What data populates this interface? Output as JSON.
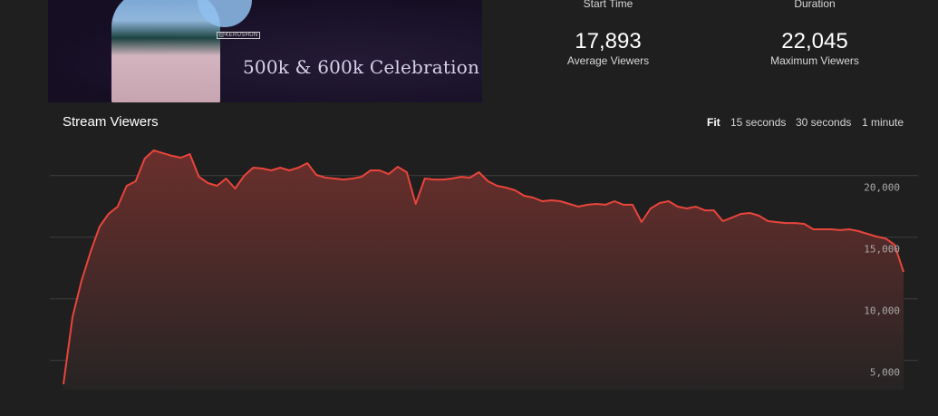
{
  "thumbnail": {
    "caption": "500k & 600k Celebration",
    "tag": "@KERUSHUN"
  },
  "stats": [
    {
      "label": "Start Time"
    },
    {
      "label": "Duration"
    },
    {
      "value": "17,893",
      "label": "Average Viewers"
    },
    {
      "value": "22,045",
      "label": "Maximum Viewers"
    }
  ],
  "chart_title": "Stream Viewers",
  "resolutions": [
    "Fit",
    "15 seconds",
    "30 seconds",
    "1 minute"
  ],
  "active_resolution": "Fit",
  "colors": {
    "line": "#e8453c",
    "fill_top": "#6b2f2c",
    "fill_bottom": "#262424",
    "background": "#1f1f1f"
  },
  "chart_data": {
    "type": "area",
    "title": "Stream Viewers",
    "xlabel": "",
    "ylabel": "",
    "ylim": [
      2700,
      22500
    ],
    "yticks": [
      5000,
      10000,
      15000,
      20000
    ],
    "ytick_labels": [
      "5,000",
      "10,000",
      "15,000",
      "20,000"
    ],
    "grid": true,
    "values": [
      3070,
      8510,
      11450,
      13800,
      15860,
      16890,
      17480,
      19170,
      19540,
      21380,
      22045,
      21820,
      21600,
      21450,
      21740,
      19900,
      19390,
      19170,
      19760,
      18950,
      19980,
      20640,
      20570,
      20420,
      20640,
      20420,
      20640,
      21010,
      20050,
      19830,
      19760,
      19680,
      19760,
      19900,
      20420,
      20420,
      20120,
      20710,
      20270,
      17700,
      19760,
      19680,
      19680,
      19760,
      19900,
      19830,
      20270,
      19540,
      19170,
      19020,
      18800,
      18360,
      18210,
      17920,
      17990,
      17920,
      17700,
      17480,
      17630,
      17700,
      17630,
      17920,
      17630,
      17630,
      16230,
      17330,
      17770,
      17920,
      17480,
      17330,
      17480,
      17180,
      17180,
      16300,
      16590,
      16890,
      16960,
      16740,
      16300,
      16220,
      16150,
      16150,
      16080,
      15640,
      15640,
      15640,
      15570,
      15640,
      15490,
      15270,
      15050,
      14900,
      14390,
      12180
    ]
  }
}
